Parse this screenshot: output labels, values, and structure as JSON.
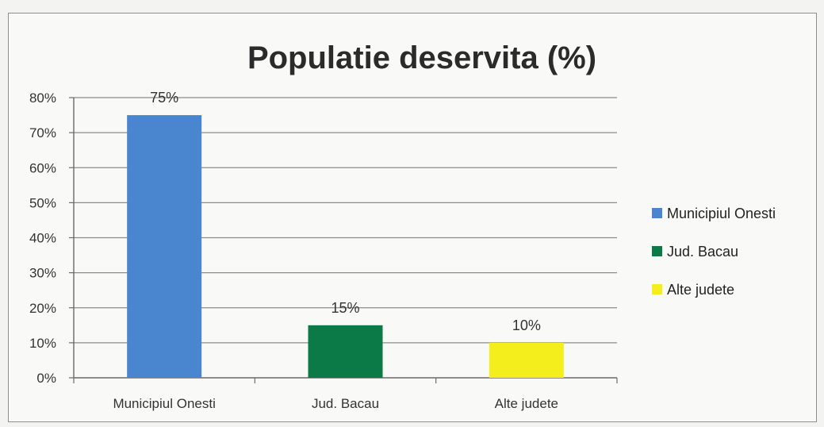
{
  "chart_data": {
    "type": "bar",
    "title": "Populatie deservita (%)",
    "categories": [
      "Municipiul Onesti",
      "Jud. Bacau",
      "Alte judete"
    ],
    "values": [
      75,
      15,
      10
    ],
    "data_labels": [
      "75%",
      "15%",
      "10%"
    ],
    "colors": [
      "#4a86cf",
      "#0b7a47",
      "#f4ee1c"
    ],
    "ylim": [
      0,
      80
    ],
    "yticks": [
      0,
      10,
      20,
      30,
      40,
      50,
      60,
      70,
      80
    ],
    "ytick_labels": [
      "0%",
      "10%",
      "20%",
      "30%",
      "40%",
      "50%",
      "60%",
      "70%",
      "80%"
    ],
    "grid": true,
    "legend": {
      "placement": "right",
      "entries": [
        "Municipiul Onesti",
        "Jud. Bacau",
        "Alte judete"
      ]
    }
  }
}
